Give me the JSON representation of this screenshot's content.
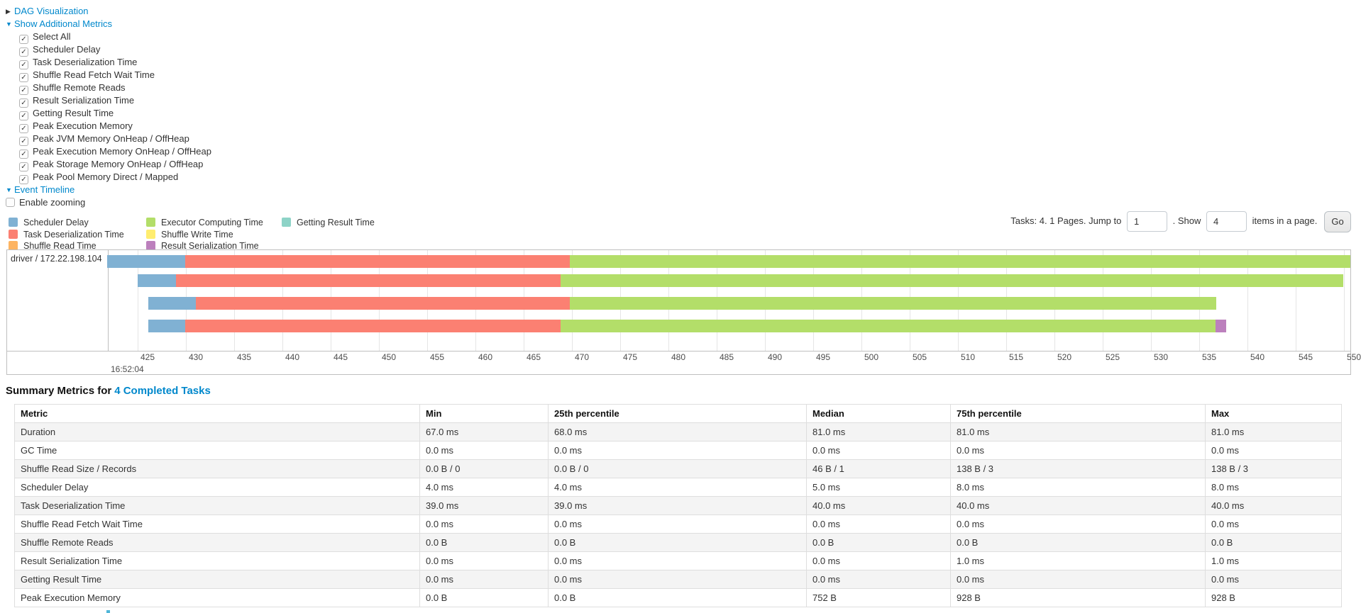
{
  "icons": {
    "arrow_closed": "▶",
    "arrow_open": "▼",
    "check": "✓"
  },
  "colors": {
    "link": "#0088cc",
    "scheduler_delay": "#80B1D3",
    "task_deserialization": "#FB8072",
    "shuffle_read": "#FDB462",
    "executor_computing": "#B3DE69",
    "shuffle_write": "#FFED6F",
    "result_serialization": "#BC80BD",
    "getting_result": "#8DD3C7"
  },
  "controls": {
    "dag_label": "DAG Visualization",
    "metrics_toggle_label": "Show Additional Metrics",
    "checkbox_items": [
      "Select All",
      "Scheduler Delay",
      "Task Deserialization Time",
      "Shuffle Read Fetch Wait Time",
      "Shuffle Remote Reads",
      "Result Serialization Time",
      "Getting Result Time",
      "Peak Execution Memory",
      "Peak JVM Memory OnHeap / OffHeap",
      "Peak Execution Memory OnHeap / OffHeap",
      "Peak Storage Memory OnHeap / OffHeap",
      "Peak Pool Memory Direct / Mapped"
    ],
    "event_timeline_label": "Event Timeline",
    "enable_zooming_label": "Enable zooming"
  },
  "legend": {
    "columns": [
      [
        {
          "key": "scheduler_delay",
          "label": "Scheduler Delay"
        },
        {
          "key": "task_deserialization",
          "label": "Task Deserialization Time"
        },
        {
          "key": "shuffle_read",
          "label": "Shuffle Read Time"
        }
      ],
      [
        {
          "key": "executor_computing",
          "label": "Executor Computing Time"
        },
        {
          "key": "shuffle_write",
          "label": "Shuffle Write Time"
        },
        {
          "key": "result_serialization",
          "label": "Result Serialization Time"
        }
      ],
      [
        {
          "key": "getting_result",
          "label": "Getting Result Time"
        }
      ]
    ]
  },
  "pagination": {
    "prefix": "Tasks: 4. 1 Pages. Jump to",
    "jump_value": "1",
    "mid": ". Show",
    "show_value": "4",
    "suffix": "items in a page.",
    "go_label": "Go"
  },
  "chart_data": {
    "type": "timeline-gantt",
    "row_label": "driver / 172.22.198.104",
    "axis": {
      "major_label": "16:52:04",
      "tick_unit": "ms",
      "tick_start": 425,
      "tick_end": 550,
      "tick_step": 5,
      "window_start_ms": 421.85,
      "window_end_ms": 550.7
    },
    "bars": [
      {
        "task": 0,
        "start": 421.85,
        "segments": [
          {
            "key": "scheduler_delay",
            "end": 429.9
          },
          {
            "key": "task_deserialization",
            "end": 469.8
          },
          {
            "key": "executor_computing",
            "end": 550.7
          }
        ]
      },
      {
        "task": 1,
        "start": 425.0,
        "segments": [
          {
            "key": "scheduler_delay",
            "end": 429.0
          },
          {
            "key": "task_deserialization",
            "end": 468.8
          },
          {
            "key": "executor_computing",
            "end": 549.9
          }
        ]
      },
      {
        "task": 2,
        "start": 426.1,
        "segments": [
          {
            "key": "scheduler_delay",
            "end": 431.0
          },
          {
            "key": "task_deserialization",
            "end": 469.8
          },
          {
            "key": "executor_computing",
            "end": 536.8
          }
        ]
      },
      {
        "task": 3,
        "start": 426.1,
        "segments": [
          {
            "key": "scheduler_delay",
            "end": 429.9
          },
          {
            "key": "task_deserialization",
            "end": 468.8
          },
          {
            "key": "executor_computing",
            "end": 536.7
          },
          {
            "key": "result_serialization",
            "end": 537.8
          }
        ]
      }
    ]
  },
  "summary": {
    "title_prefix": "Summary Metrics for",
    "title_link": "4 Completed Tasks",
    "table": {
      "headers": [
        "Metric",
        "Min",
        "25th percentile",
        "Median",
        "75th percentile",
        "Max"
      ],
      "rows": [
        {
          "metric": "Duration",
          "values": [
            "67.0 ms",
            "68.0 ms",
            "81.0 ms",
            "81.0 ms",
            "81.0 ms"
          ]
        },
        {
          "metric": "GC Time",
          "values": [
            "0.0 ms",
            "0.0 ms",
            "0.0 ms",
            "0.0 ms",
            "0.0 ms"
          ]
        },
        {
          "metric": "Shuffle Read Size / Records",
          "values": [
            "0.0 B / 0",
            "0.0 B / 0",
            "46 B / 1",
            "138 B / 3",
            "138 B / 3"
          ]
        },
        {
          "metric": "Scheduler Delay",
          "values": [
            "4.0 ms",
            "4.0 ms",
            "5.0 ms",
            "8.0 ms",
            "8.0 ms"
          ]
        },
        {
          "metric": "Task Deserialization Time",
          "values": [
            "39.0 ms",
            "39.0 ms",
            "40.0 ms",
            "40.0 ms",
            "40.0 ms"
          ]
        },
        {
          "metric": "Shuffle Read Fetch Wait Time",
          "values": [
            "0.0 ms",
            "0.0 ms",
            "0.0 ms",
            "0.0 ms",
            "0.0 ms"
          ]
        },
        {
          "metric": "Shuffle Remote Reads",
          "values": [
            "0.0 B",
            "0.0 B",
            "0.0 B",
            "0.0 B",
            "0.0 B"
          ]
        },
        {
          "metric": "Result Serialization Time",
          "values": [
            "0.0 ms",
            "0.0 ms",
            "0.0 ms",
            "1.0 ms",
            "1.0 ms"
          ]
        },
        {
          "metric": "Getting Result Time",
          "values": [
            "0.0 ms",
            "0.0 ms",
            "0.0 ms",
            "0.0 ms",
            "0.0 ms"
          ]
        },
        {
          "metric": "Peak Execution Memory",
          "values": [
            "0.0 B",
            "0.0 B",
            "752 B",
            "928 B",
            "928 B"
          ]
        }
      ]
    }
  }
}
